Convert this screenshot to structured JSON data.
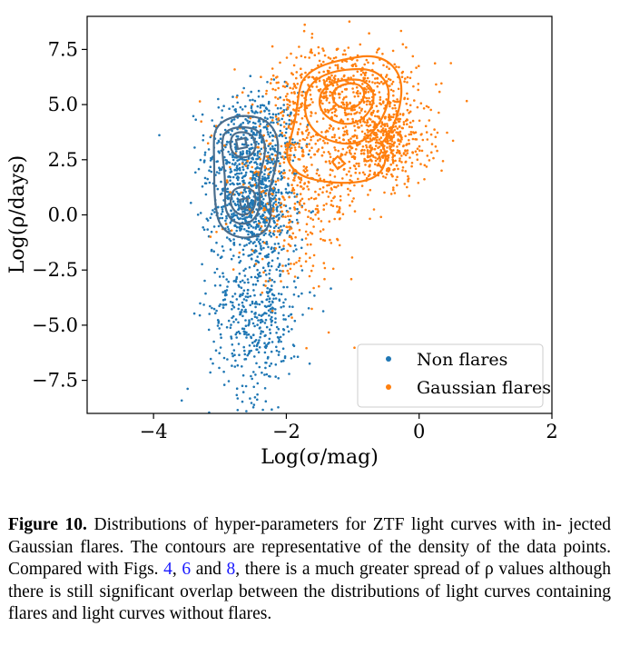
{
  "chart_data": {
    "type": "scatter",
    "xlabel": "Log(σ/mag)",
    "ylabel": "Log(ρ/days)",
    "xlim": [
      -5.0,
      2.0
    ],
    "ylim": [
      -9.0,
      9.0
    ],
    "xticks": [
      -4,
      -2,
      0,
      2
    ],
    "xtick_labels": [
      "−4",
      "−2",
      "0",
      "2"
    ],
    "yticks": [
      -7.5,
      -5.0,
      -2.5,
      0.0,
      2.5,
      5.0,
      7.5
    ],
    "ytick_labels": [
      "−7.5",
      "−5.0",
      "−2.5",
      "0.0",
      "2.5",
      "5.0",
      "7.5"
    ],
    "legend_position": "bottom-right",
    "series": [
      {
        "name": "Non flares",
        "color": "#1f77b4",
        "clusters": [
          {
            "center": [
              -2.5,
              3.0
            ],
            "spread": [
              0.35,
              1.3
            ]
          },
          {
            "center": [
              -2.5,
              0.3
            ],
            "spread": [
              0.3,
              1.0
            ]
          },
          {
            "center": [
              -2.45,
              -4.2
            ],
            "spread": [
              0.35,
              2.0
            ]
          }
        ]
      },
      {
        "name": "Gaussian flares",
        "color": "#ff7f0e",
        "clusters": [
          {
            "center": [
              -1.1,
              5.6
            ],
            "spread": [
              0.55,
              1.1
            ]
          },
          {
            "center": [
              -0.55,
              3.2
            ],
            "spread": [
              0.35,
              0.9
            ]
          },
          {
            "center": [
              -1.8,
              1.5
            ],
            "spread": [
              0.5,
              2.2
            ]
          }
        ]
      }
    ]
  },
  "caption": {
    "label": "Figure 10.",
    "line1": "Distributions of hyper-parameters for ZTF light curves with in-",
    "line2": "jected Gaussian flares. The contours are representative of the density of the",
    "line3a": "data points. Compared with Figs.",
    "ref1": "4",
    "ref2": "6",
    "ref3": "8",
    "line3b": "there is a much greater spread of",
    "line4": "ρ values although there is still significant overlap between the distributions",
    "line5": "of light curves containing flares and light curves without flares."
  }
}
